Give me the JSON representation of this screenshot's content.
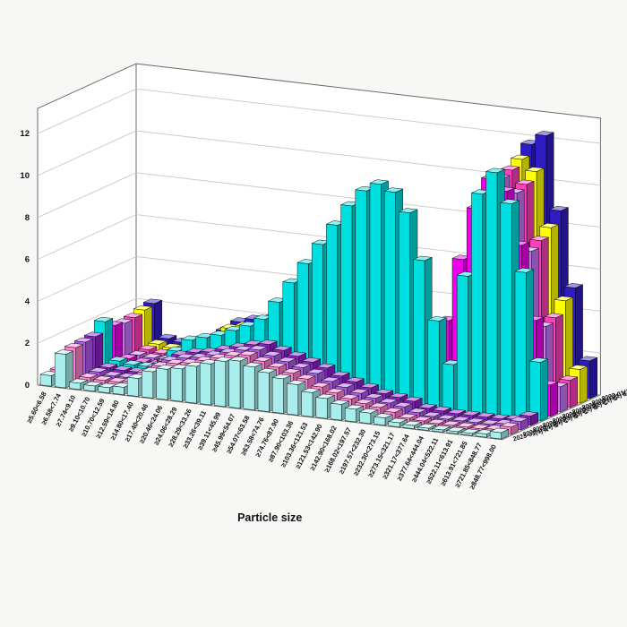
{
  "page": {
    "background": "#f7f7f5",
    "wall_color": "#ffffff",
    "grid_color": "#c8c8c4",
    "frame_color": "#6a6a66"
  },
  "chart_data": {
    "type": "bar",
    "projection": "3d",
    "title": "",
    "xlabel": "Particle size",
    "ylabel": "",
    "ylim": [
      0,
      12
    ],
    "yticks": [
      0,
      2,
      4,
      6,
      8,
      10,
      12
    ],
    "grid": true,
    "legend_position": "right-depth-axis",
    "categories": [
      "≥5.60<6.58",
      "≥6.58<7.74",
      "≥7.74<9.10",
      "≥9.10<10.70",
      "≥10.70<12.59",
      "≥12.59<14.80",
      "≥14.80<17.40",
      "≥17.40<20.46",
      "≥20.46<24.06",
      "≥24.06<28.29",
      "≥28.29<33.26",
      "≥33.26<39.11",
      "≥39.11<45.99",
      "≥45.99<54.07",
      "≥54.07<63.58",
      "≥63.58<74.76",
      "≥74.76<87.90",
      "≥87.90<103.36",
      "≥103.36<121.53",
      "≥121.53<142.90",
      "≥142.90<168.02",
      "≥168.02<197.57",
      "≥197.57<232.30",
      "≥232.30<273.15",
      "≥273.15<321.17",
      "≥321.17<377.64",
      "≥377.64<444.04",
      "≥444.04<522.11",
      "≥522.11<613.91",
      "≥613.91<721.85",
      "≥721.85<848.77",
      "≥848.77<998.00"
    ],
    "series_order": "back-to-front",
    "series": [
      {
        "name": "2023-01(1) F",
        "color": "#2F1BC4",
        "values": [
          0.55,
          2.1,
          0.5,
          0.4,
          0.4,
          0.55,
          1.2,
          1.7,
          1.9,
          2.0,
          2.2,
          2.4,
          2.6,
          2.7,
          2.5,
          2.3,
          2.1,
          1.9,
          1.6,
          1.3,
          1.1,
          0.9,
          0.8,
          1.8,
          4.5,
          7.5,
          10.2,
          11.8,
          12.3,
          8.8,
          5.2,
          1.8
        ]
      },
      {
        "name": "2023-01(1) E",
        "color": "#FFFF00",
        "values": [
          0.5,
          2.0,
          0.45,
          0.35,
          0.35,
          0.5,
          1.1,
          1.6,
          1.8,
          1.9,
          2.1,
          2.3,
          2.5,
          2.6,
          2.4,
          2.2,
          2.0,
          1.8,
          1.5,
          1.2,
          1.0,
          0.8,
          0.7,
          1.6,
          4.2,
          7.2,
          9.8,
          11.3,
          10.8,
          8.2,
          4.8,
          1.6
        ]
      },
      {
        "name": "2023-01(1) D",
        "color": "#FF3FBB",
        "values": [
          0.45,
          1.85,
          0.4,
          0.3,
          0.3,
          0.45,
          1.0,
          1.5,
          1.7,
          1.8,
          2.0,
          2.2,
          2.4,
          2.5,
          2.3,
          2.1,
          1.9,
          1.7,
          1.4,
          1.1,
          0.9,
          0.8,
          0.6,
          1.3,
          3.8,
          6.8,
          9.3,
          11.0,
          10.4,
          7.8,
          4.2,
          1.3
        ]
      },
      {
        "name": "2023-01(2) C",
        "color": "#C478F2",
        "values": [
          0.4,
          1.8,
          0.35,
          0.3,
          0.3,
          0.4,
          0.9,
          1.4,
          1.6,
          1.7,
          1.9,
          2.1,
          2.3,
          2.4,
          2.2,
          2.0,
          1.8,
          1.6,
          1.3,
          1.1,
          0.9,
          0.7,
          0.6,
          1.2,
          3.5,
          6.5,
          9.0,
          10.8,
          10.2,
          7.5,
          4.0,
          1.2
        ]
      },
      {
        "name": "2023-01(2) B",
        "color": "#EE00EE",
        "values": [
          0.5,
          1.9,
          0.4,
          0.3,
          0.3,
          0.4,
          1.0,
          1.5,
          1.7,
          1.8,
          2.0,
          2.2,
          2.4,
          2.6,
          2.4,
          2.2,
          2.0,
          1.8,
          1.5,
          1.2,
          1.0,
          0.8,
          0.7,
          1.5,
          4.0,
          7.0,
          9.5,
          11.0,
          10.5,
          8.0,
          4.5,
          1.5
        ]
      },
      {
        "name": "2023-01(3) C",
        "color": "#00DFDF",
        "values": [
          0.8,
          2.3,
          0.5,
          0.4,
          0.4,
          0.6,
          1.3,
          1.9,
          2.1,
          2.3,
          2.6,
          2.9,
          3.3,
          4.2,
          5.2,
          6.2,
          7.2,
          8.2,
          9.2,
          10.0,
          10.4,
          10.1,
          9.2,
          7.0,
          4.2,
          2.2,
          6.5,
          10.5,
          11.6,
          10.2,
          7.0,
          2.8
        ]
      },
      {
        "name": "2023-01(3) B",
        "color": "#8A22CC",
        "values": [
          0.65,
          1.8,
          0.4,
          0.35,
          0.35,
          0.5,
          1.0,
          1.4,
          1.6,
          1.7,
          1.9,
          2.1,
          2.3,
          2.4,
          2.2,
          2.0,
          1.8,
          1.6,
          1.3,
          1.1,
          0.9,
          0.7,
          0.6,
          0.5,
          0.25,
          0.2,
          0.15,
          0.15,
          0.15,
          0.15,
          0.2,
          0.45
        ]
      },
      {
        "name": "2023-01(4) C",
        "color": "#AE5BEA",
        "values": [
          0.6,
          1.75,
          0.4,
          0.3,
          0.3,
          0.45,
          0.95,
          1.35,
          1.55,
          1.65,
          1.85,
          2.05,
          2.25,
          2.35,
          2.15,
          1.95,
          1.75,
          1.55,
          1.25,
          1.05,
          0.85,
          0.7,
          0.55,
          0.45,
          0.25,
          0.15,
          0.1,
          0.1,
          0.1,
          0.1,
          0.2,
          0.4
        ]
      },
      {
        "name": "2023-01(4) B",
        "color": "#FF7FD2",
        "values": [
          0.55,
          1.7,
          0.35,
          0.3,
          0.3,
          0.4,
          0.9,
          1.3,
          1.5,
          1.6,
          1.8,
          2.0,
          2.2,
          2.3,
          2.1,
          1.9,
          1.7,
          1.5,
          1.2,
          1.0,
          0.8,
          0.65,
          0.55,
          0.4,
          0.2,
          0.15,
          0.1,
          0.1,
          0.1,
          0.1,
          0.15,
          0.35
        ]
      },
      {
        "name": "2023-01(4) A",
        "color": "#A9EEEC",
        "values": [
          0.5,
          1.6,
          0.3,
          0.25,
          0.25,
          0.35,
          0.85,
          1.25,
          1.45,
          1.55,
          1.75,
          1.95,
          2.15,
          2.25,
          2.05,
          1.85,
          1.65,
          1.45,
          1.15,
          0.95,
          0.75,
          0.6,
          0.5,
          0.35,
          0.2,
          0.15,
          0.1,
          0.1,
          0.1,
          0.1,
          0.15,
          0.3
        ]
      }
    ]
  }
}
